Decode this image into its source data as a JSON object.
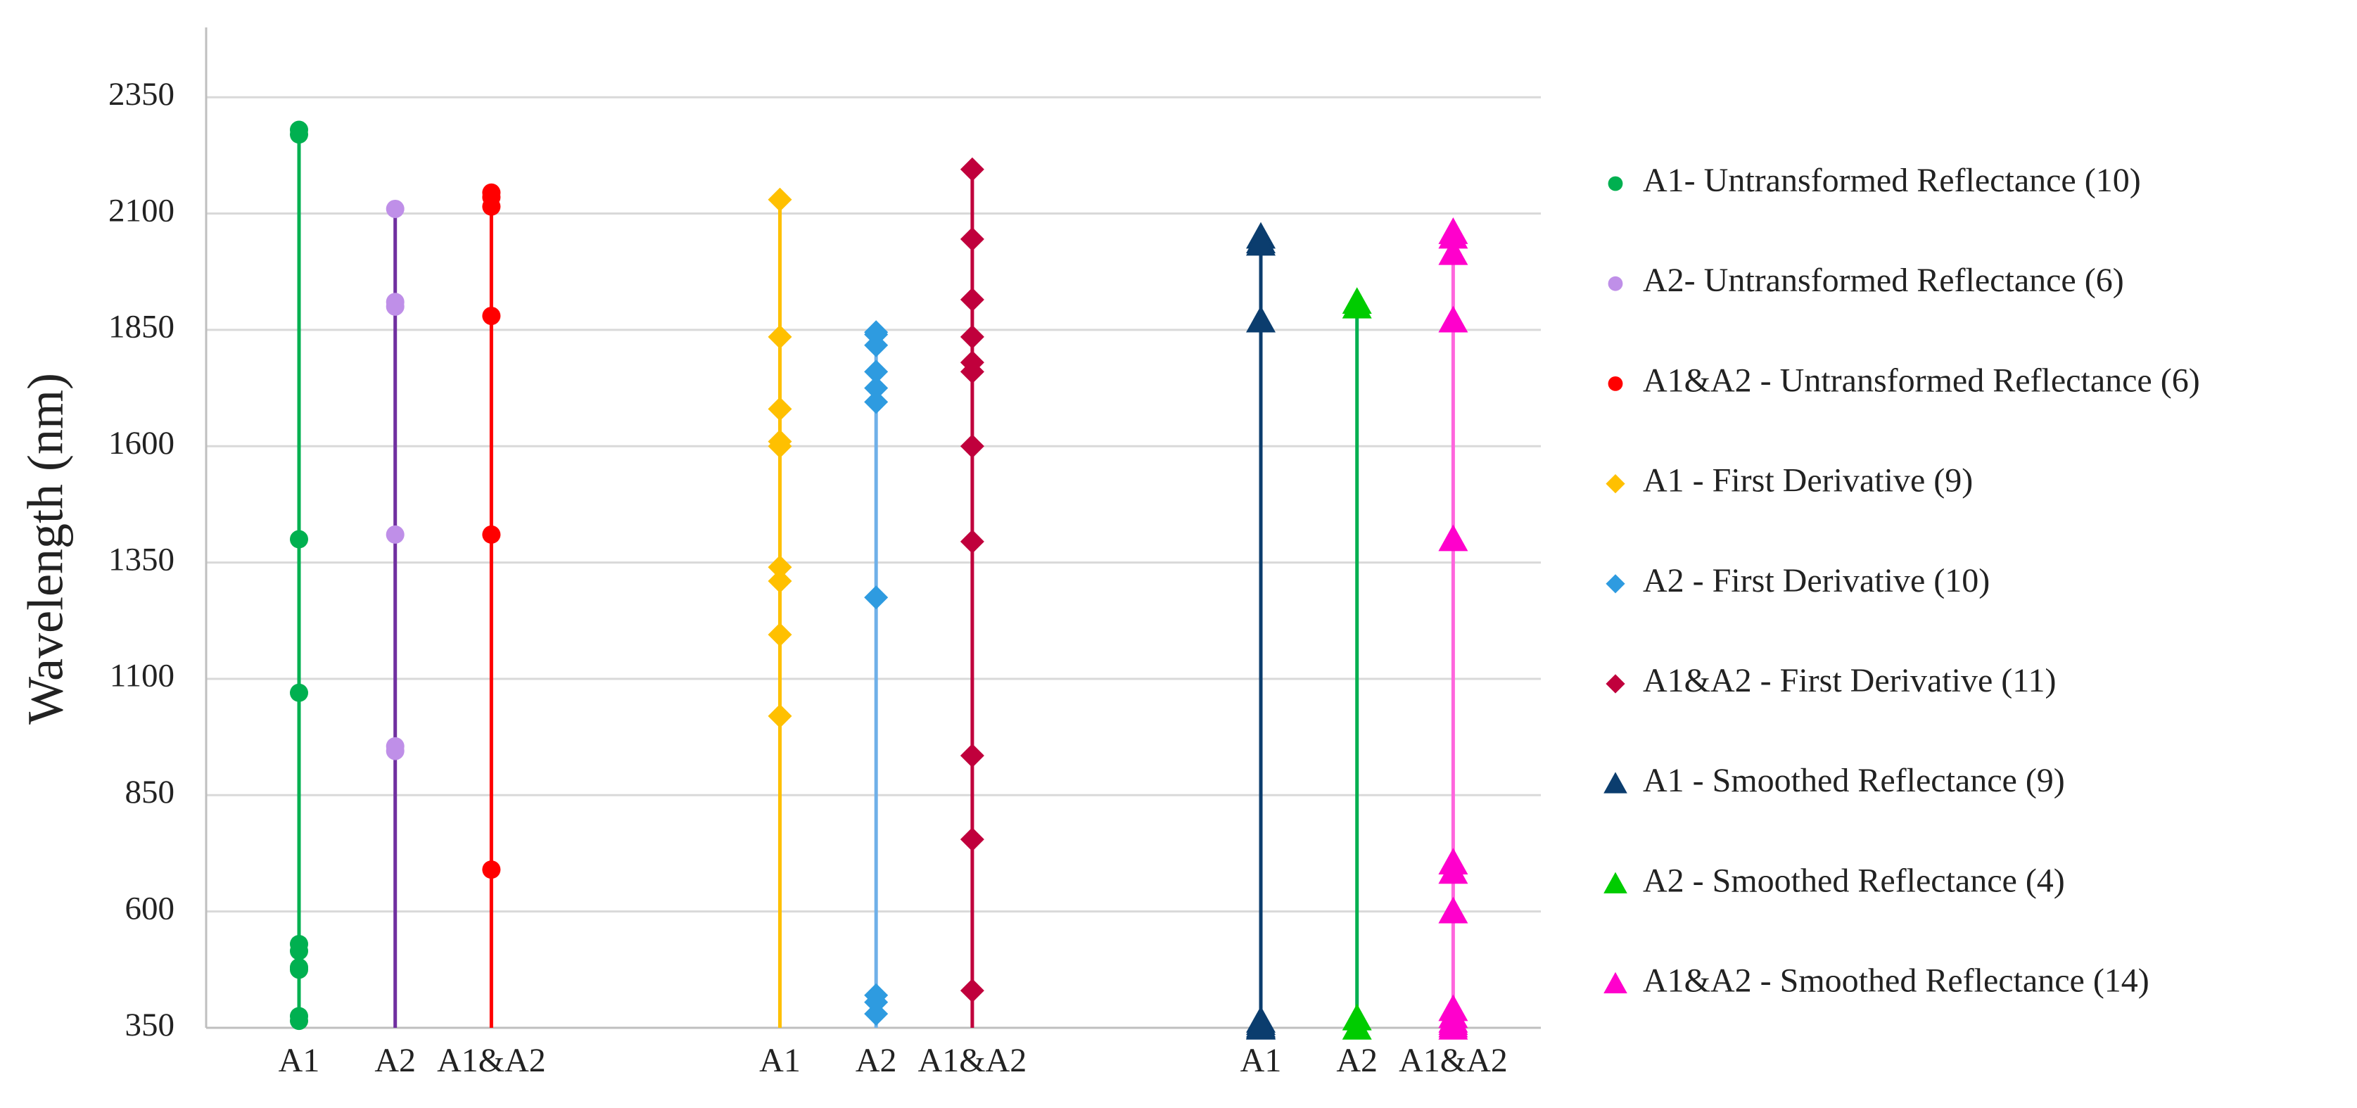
{
  "chart_data": {
    "type": "dot-strip",
    "y_label": "Wavelength (nm)",
    "categories": [
      "A1",
      "A2",
      "A1&A2",
      null,
      null,
      "A1",
      "A2",
      "A1&A2",
      null,
      null,
      "A1",
      "A2",
      "A1&A2"
    ],
    "ylim": [
      350,
      2500
    ],
    "yticks": [
      350,
      600,
      850,
      1100,
      1350,
      1600,
      1850,
      2100,
      2350
    ],
    "grid": true,
    "legend": "right",
    "series": [
      {
        "name": "A1- Untransformed Reflectance (10)",
        "marker": "circle",
        "color": "#00b050",
        "line_color": "#00b050",
        "values": [
          2270,
          2280,
          1400,
          1070,
          530,
          515,
          480,
          475,
          375,
          365
        ]
      },
      {
        "name": "A2- Untransformed Reflectance (6)",
        "marker": "circle",
        "color": "#bf8fe8",
        "line_color": "#7030a0",
        "values": [
          2110,
          1910,
          1900,
          1410,
          955,
          945
        ]
      },
      {
        "name": "A1&A2 - Untransformed Reflectance (6)",
        "marker": "circle",
        "color": "#ff0000",
        "line_color": "#ff0000",
        "values": [
          2145,
          2135,
          2115,
          1880,
          1410,
          690
        ]
      },
      {
        "name": "A1 - First Derivative (9)",
        "marker": "diamond",
        "color": "#ffc000",
        "line_color": "#ffc000",
        "values": [
          2130,
          1835,
          1680,
          1610,
          1600,
          1340,
          1310,
          1195,
          1020
        ]
      },
      {
        "name": "A2 - First Derivative (10)",
        "marker": "diamond",
        "color": "#2e9be0",
        "line_color": "#6fb0e8",
        "values": [
          1845,
          1840,
          1817,
          1760,
          1725,
          1695,
          1275,
          420,
          405,
          380
        ]
      },
      {
        "name": "A1&A2 - First Derivative (11)",
        "marker": "diamond",
        "color": "#c0003c",
        "line_color": "#c0003c",
        "values": [
          2195,
          2045,
          1915,
          1835,
          1780,
          1760,
          1600,
          1395,
          935,
          755,
          430
        ]
      },
      {
        "name": "A1 - Smoothed Reflectance (9)",
        "marker": "triangle",
        "color": "#0b3d6e",
        "line_color": "#0b3d6e",
        "values": [
          2050,
          2040,
          2035,
          1870,
          365,
          360,
          355,
          352,
          350
        ]
      },
      {
        "name": "A2 - Smoothed Reflectance (4)",
        "marker": "triangle",
        "color": "#00cc00",
        "line_color": "#00b050",
        "values": [
          1910,
          1900,
          370,
          350
        ]
      },
      {
        "name": "A1&A2 - Smoothed Reflectance (14)",
        "marker": "triangle",
        "color": "#ff00cc",
        "line_color": "#ff66dd",
        "values": [
          2060,
          2050,
          2015,
          1870,
          1400,
          705,
          685,
          600,
          390,
          375,
          365,
          360,
          355,
          350
        ]
      }
    ]
  }
}
